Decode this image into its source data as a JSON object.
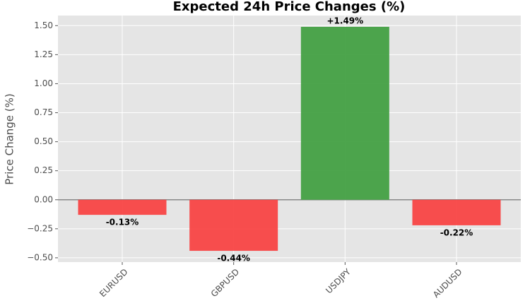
{
  "chart_data": {
    "type": "bar",
    "title": "Expected 24h Price Changes (%)",
    "y_label": "Price Change (%)",
    "categories": [
      "EURUSD",
      "GBPUSD",
      "USDJPY",
      "AUDUSD"
    ],
    "values": [
      -0.13,
      -0.44,
      1.49,
      -0.22
    ],
    "value_labels": [
      "-0.13%",
      "-0.44%",
      "+1.49%",
      "-0.22%"
    ],
    "colors": [
      "#f84444",
      "#f84444",
      "#43a043",
      "#f84444"
    ],
    "ylim": [
      -0.537,
      1.587
    ],
    "yticks": [
      {
        "value": -0.5,
        "label": "−0.50"
      },
      {
        "value": -0.25,
        "label": "−0.25"
      },
      {
        "value": 0,
        "label": "0.00"
      },
      {
        "value": 0.25,
        "label": "0.25"
      },
      {
        "value": 0.5,
        "label": "0.50"
      },
      {
        "value": 0.75,
        "label": "0.75"
      },
      {
        "value": 1,
        "label": "1.00"
      },
      {
        "value": 1.25,
        "label": "1.25"
      },
      {
        "value": 1.5,
        "label": "1.50"
      }
    ],
    "grid": true
  }
}
